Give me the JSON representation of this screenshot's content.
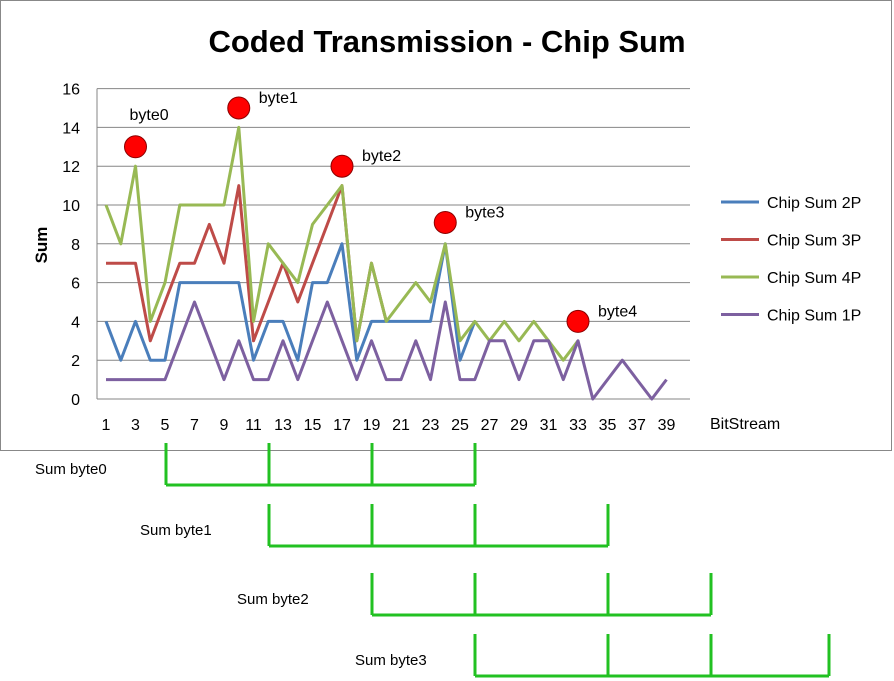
{
  "chart_data": {
    "type": "line",
    "title": "Coded Transmission - Chip Sum",
    "xlabel": "BitStream",
    "ylabel": "Sum",
    "ylim": [
      0,
      16
    ],
    "yticks": [
      0,
      2,
      4,
      6,
      8,
      10,
      12,
      14,
      16
    ],
    "xlim": [
      1,
      39
    ],
    "xticks": [
      1,
      3,
      5,
      7,
      9,
      11,
      13,
      15,
      17,
      19,
      21,
      23,
      25,
      27,
      29,
      31,
      33,
      35,
      37,
      39
    ],
    "grid": "horizontal",
    "legend_position": "right",
    "series": [
      {
        "name": "Chip Sum 2P",
        "color": "#4A7EBB",
        "x": [
          1,
          2,
          3,
          4,
          5,
          6,
          7,
          8,
          9,
          10,
          11,
          12,
          13,
          14,
          15,
          16,
          17,
          18,
          19,
          20,
          21,
          22,
          23,
          24,
          25,
          26
        ],
        "values": [
          4,
          2,
          4,
          2,
          2,
          6,
          6,
          6,
          6,
          6,
          2,
          4,
          4,
          2,
          6,
          6,
          8,
          2,
          4,
          4,
          4,
          4,
          4,
          8,
          2,
          4
        ]
      },
      {
        "name": "Chip Sum 3P",
        "color": "#BE4B48",
        "x": [
          1,
          2,
          3,
          4,
          5,
          6,
          7,
          8,
          9,
          10,
          11,
          12,
          13,
          14,
          15,
          16,
          17,
          18,
          19,
          20
        ],
        "values": [
          7,
          7,
          7,
          3,
          5,
          7,
          7,
          9,
          7,
          11,
          3,
          5,
          7,
          5,
          7,
          9,
          11,
          3,
          7,
          4
        ]
      },
      {
        "name": "Chip Sum 4P",
        "color": "#98B954",
        "x": [
          1,
          2,
          3,
          4,
          5,
          6,
          7,
          8,
          9,
          10,
          11,
          12,
          13,
          14,
          15,
          16,
          17,
          18,
          19,
          20,
          21,
          22,
          23,
          24,
          25,
          26,
          27,
          28,
          29,
          30,
          31,
          32,
          33
        ],
        "values": [
          10,
          8,
          12,
          4,
          6,
          10,
          10,
          10,
          10,
          14,
          4,
          8,
          7,
          6,
          9,
          10,
          11,
          3,
          7,
          4,
          5,
          6,
          5,
          8,
          3,
          4,
          3,
          4,
          3,
          4,
          3,
          2,
          3
        ]
      },
      {
        "name": "Chip Sum 1P",
        "color": "#7D60A0",
        "x": [
          1,
          2,
          3,
          4,
          5,
          6,
          7,
          8,
          9,
          10,
          11,
          12,
          13,
          14,
          15,
          16,
          17,
          18,
          19,
          20,
          21,
          22,
          23,
          24,
          25,
          26,
          27,
          28,
          29,
          30,
          31,
          32,
          33,
          34,
          35,
          36,
          37,
          38,
          39
        ],
        "values": [
          1,
          1,
          1,
          1,
          1,
          3,
          5,
          3,
          1,
          3,
          1,
          1,
          3,
          1,
          3,
          5,
          3,
          1,
          3,
          1,
          1,
          3,
          1,
          5,
          1,
          1,
          3,
          3,
          1,
          3,
          3,
          1,
          3,
          0,
          1,
          2,
          1,
          0,
          1
        ]
      }
    ],
    "annotations": [
      {
        "label": "byte0",
        "x": 3,
        "y": 13
      },
      {
        "label": "byte1",
        "x": 10,
        "y": 15
      },
      {
        "label": "byte2",
        "x": 17,
        "y": 12
      },
      {
        "label": "byte3",
        "x": 24,
        "y": 9.1
      },
      {
        "label": "byte4",
        "x": 33,
        "y": 4
      }
    ],
    "marker_color": "#FF0000",
    "brackets": {
      "color": "#22C122",
      "items": [
        {
          "label": "Sum byte0",
          "ticks_at": [
            3,
            10,
            17,
            24
          ]
        },
        {
          "label": "Sum byte1",
          "ticks_at": [
            10,
            17,
            24,
            33
          ]
        },
        {
          "label": "Sum byte2",
          "ticks_at": [
            17,
            24,
            33,
            40
          ]
        },
        {
          "label": "Sum byte3",
          "ticks_at": [
            24,
            33,
            40,
            48
          ]
        }
      ]
    }
  }
}
